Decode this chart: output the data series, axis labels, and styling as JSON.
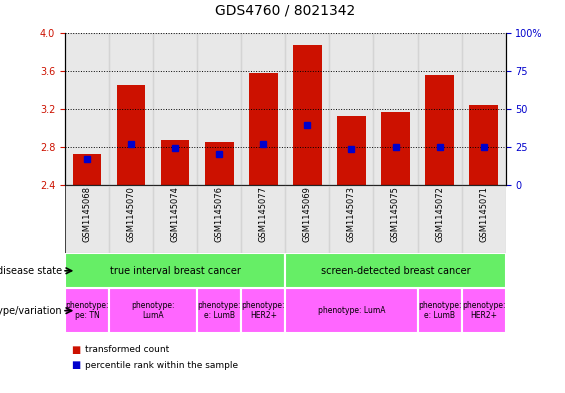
{
  "title": "GDS4760 / 8021342",
  "samples": [
    "GSM1145068",
    "GSM1145070",
    "GSM1145074",
    "GSM1145076",
    "GSM1145077",
    "GSM1145069",
    "GSM1145073",
    "GSM1145075",
    "GSM1145072",
    "GSM1145071"
  ],
  "red_values": [
    2.72,
    3.45,
    2.87,
    2.85,
    3.58,
    3.88,
    3.13,
    3.17,
    3.56,
    3.24
  ],
  "blue_values": [
    2.67,
    2.83,
    2.79,
    2.73,
    2.83,
    3.03,
    2.78,
    2.8,
    2.8,
    2.8
  ],
  "ymin": 2.4,
  "ymax": 4.0,
  "y2min": 0,
  "y2max": 100,
  "yticks_left": [
    2.4,
    2.8,
    3.2,
    3.6,
    4.0
  ],
  "yticks_right": [
    0,
    25,
    50,
    75,
    100
  ],
  "disease_states": [
    {
      "label": "true interval breast cancer",
      "start": 0,
      "end": 5,
      "color": "#66EE66"
    },
    {
      "label": "screen-detected breast cancer",
      "start": 5,
      "end": 10,
      "color": "#66EE66"
    }
  ],
  "genotypes": [
    {
      "label": "phenotype:\npe: TN",
      "start": 0,
      "end": 1,
      "color": "#FF66FF"
    },
    {
      "label": "phenotype:\nLumA",
      "start": 1,
      "end": 3,
      "color": "#FF66FF"
    },
    {
      "label": "phenotype:\ne: LumB",
      "start": 3,
      "end": 4,
      "color": "#FF66FF"
    },
    {
      "label": "phenotype:\nHER2+",
      "start": 4,
      "end": 5,
      "color": "#FF66FF"
    },
    {
      "label": "phenotype: LumA",
      "start": 5,
      "end": 8,
      "color": "#FF66FF"
    },
    {
      "label": "phenotype:\ne: LumB",
      "start": 8,
      "end": 9,
      "color": "#FF66FF"
    },
    {
      "label": "phenotype:\nHER2+",
      "start": 9,
      "end": 10,
      "color": "#FF66FF"
    }
  ],
  "bar_color": "#CC1100",
  "blue_color": "#0000CC",
  "left_axis_color": "#CC1100",
  "right_axis_color": "#0000CC",
  "col_bg_color": "#CCCCCC",
  "bar_width": 0.65,
  "title_fontsize": 10,
  "tick_fontsize": 7,
  "label_fontsize": 7,
  "sample_fontsize": 6
}
